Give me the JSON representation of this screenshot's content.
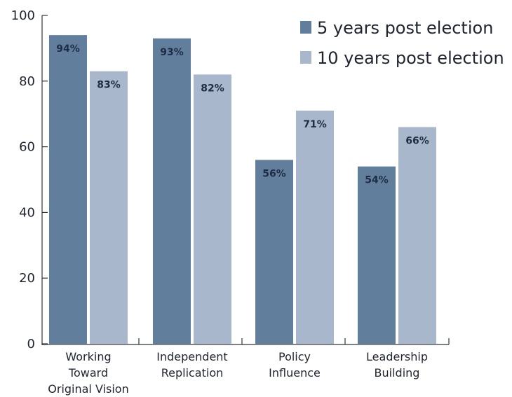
{
  "chart_data": {
    "type": "bar",
    "title": "",
    "xlabel": "",
    "ylabel": "",
    "ylim": [
      0,
      100
    ],
    "y_ticks": [
      0,
      20,
      40,
      60,
      80,
      100
    ],
    "grid": false,
    "legend_position": "top-right",
    "categories": [
      [
        "Working",
        "Toward",
        "Original Vision"
      ],
      [
        "Independent",
        "Replication"
      ],
      [
        "Policy",
        "Influence"
      ],
      [
        "Leadership",
        "Building"
      ]
    ],
    "series": [
      {
        "name": "5 years post election",
        "color": "#617f9d",
        "values": [
          94,
          93,
          56,
          54
        ],
        "labels": [
          "94%",
          "93%",
          "56%",
          "54%"
        ]
      },
      {
        "name": "10 years post election",
        "color": "#a8b7cc",
        "values": [
          83,
          82,
          71,
          66
        ],
        "labels": [
          "83%",
          "82%",
          "71%",
          "66%"
        ]
      }
    ]
  }
}
